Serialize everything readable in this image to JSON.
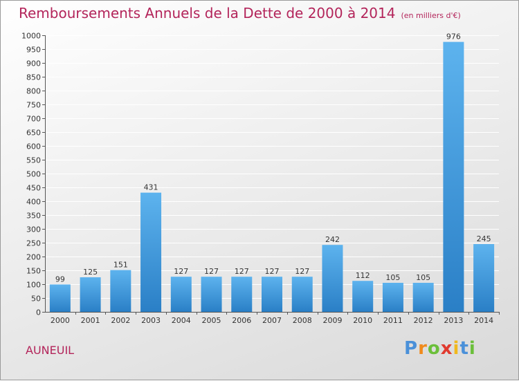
{
  "title": "Remboursements Annuels de la Dette de 2000 à 2014",
  "subtitle": "(en milliers d'€)",
  "commune": "AUNEUIL",
  "logo": {
    "letters": [
      "P",
      "r",
      "o",
      "x",
      "i",
      "t",
      "i"
    ],
    "colors": [
      "#4a90d9",
      "#f08a1c",
      "#6bbf3a",
      "#e03a2f",
      "#f0b81c",
      "#4a90d9",
      "#6bbf3a"
    ]
  },
  "colors": {
    "title": "#b3245a",
    "bar_light": "#5db3ee",
    "bar_dark": "#2a7fc6"
  },
  "chart_data": {
    "type": "bar",
    "title": "Remboursements Annuels de la Dette de 2000 à 2014",
    "subtitle": "(en milliers d'€)",
    "xlabel": "",
    "ylabel": "",
    "categories": [
      "2000",
      "2001",
      "2002",
      "2003",
      "2004",
      "2005",
      "2006",
      "2007",
      "2008",
      "2009",
      "2010",
      "2011",
      "2012",
      "2013",
      "2014"
    ],
    "values": [
      99,
      125,
      151,
      431,
      127,
      127,
      127,
      127,
      127,
      242,
      112,
      105,
      105,
      976,
      245
    ],
    "ylim": [
      0,
      1000
    ],
    "yticks": [
      0,
      50,
      100,
      150,
      200,
      250,
      300,
      350,
      400,
      450,
      500,
      550,
      600,
      650,
      700,
      750,
      800,
      850,
      900,
      950,
      1000
    ],
    "grid": true,
    "legend": "none"
  }
}
